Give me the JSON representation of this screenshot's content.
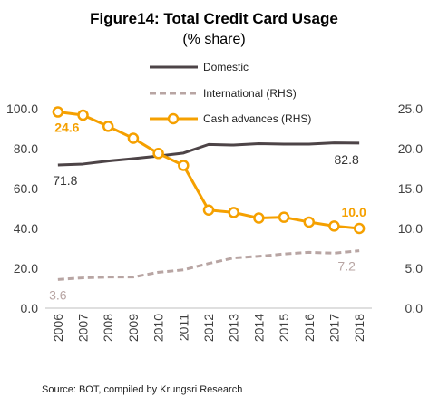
{
  "chart_data": {
    "type": "line",
    "title": "Figure14: Total Credit Card Usage",
    "subtitle": "(% share)",
    "source": "Source: BOT, compiled by Krungsri Research",
    "x": [
      "2006",
      "2007",
      "2008",
      "2009",
      "2010",
      "2011",
      "2012",
      "2013",
      "2014",
      "2015",
      "2016",
      "2017",
      "2018"
    ],
    "ylim_left": [
      0,
      100
    ],
    "yticks_left": [
      "0.0",
      "20.0",
      "40.0",
      "60.0",
      "80.0",
      "100.0"
    ],
    "ylim_right": [
      0,
      25
    ],
    "yticks_right": [
      "0.0",
      "5.0",
      "10.0",
      "15.0",
      "20.0",
      "25.0"
    ],
    "legend_position": "top-center",
    "grid": false,
    "series": [
      {
        "name": "Domestic",
        "axis": "left",
        "color": "#4d4447",
        "style": "solid",
        "values": [
          71.8,
          72.3,
          73.8,
          75.0,
          76.3,
          77.8,
          82.1,
          81.8,
          82.5,
          82.3,
          82.3,
          82.9,
          82.8
        ]
      },
      {
        "name": "International (RHS)",
        "axis": "right",
        "color": "#b8a5a3",
        "style": "dashed",
        "values": [
          3.6,
          3.8,
          3.9,
          3.9,
          4.5,
          4.8,
          5.6,
          6.3,
          6.5,
          6.8,
          7.0,
          6.9,
          7.2
        ]
      },
      {
        "name": "Cash advances (RHS)",
        "axis": "right",
        "color": "#f5a000",
        "style": "solid-markers",
        "values": [
          24.6,
          24.2,
          22.8,
          21.3,
          19.4,
          17.9,
          12.3,
          12.0,
          11.3,
          11.4,
          10.8,
          10.3,
          10.0
        ]
      }
    ],
    "data_labels": [
      {
        "series": "Domestic",
        "index": 0,
        "text": "71.8"
      },
      {
        "series": "Domestic",
        "index": 12,
        "text": "82.8"
      },
      {
        "series": "International (RHS)",
        "index": 0,
        "text": "3.6"
      },
      {
        "series": "International (RHS)",
        "index": 12,
        "text": "7.2"
      },
      {
        "series": "Cash advances (RHS)",
        "index": 0,
        "text": "24.6"
      },
      {
        "series": "Cash advances (RHS)",
        "index": 12,
        "text": "10.0"
      }
    ]
  }
}
